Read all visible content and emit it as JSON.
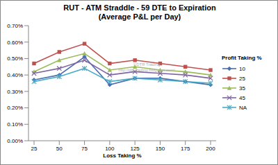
{
  "chart_data": {
    "type": "line",
    "title": "RUT - ATM Straddle - 59 DTE to Expiration",
    "subtitle": "(Average P&L per Day)",
    "x_label": "Loss Taking %",
    "legend_title": "Profit Taking %",
    "legend": "right",
    "grid": false,
    "annotations": [
      "©DTR Trading",
      "http://dtr-trading.blogspot.com/"
    ],
    "categories": [
      "25",
      "50",
      "75",
      "100",
      "125",
      "150",
      "175",
      "200"
    ],
    "ylim": [
      0,
      0.7
    ],
    "yticks": [
      {
        "value": 0,
        "label": "0.00%"
      },
      {
        "value": 0.1,
        "label": "0.10%"
      },
      {
        "value": 0.2,
        "label": "0.20%"
      },
      {
        "value": 0.3,
        "label": "0.30%"
      },
      {
        "value": 0.4,
        "label": "0.40%"
      },
      {
        "value": 0.5,
        "label": "0.50%"
      },
      {
        "value": 0.6,
        "label": "0.60%"
      },
      {
        "value": 0.7,
        "label": "0.70%"
      }
    ],
    "series": [
      {
        "name": "10",
        "color": "#4a6fb0",
        "marker": "diamond",
        "values": [
          0.37,
          0.4,
          0.51,
          0.34,
          0.38,
          0.38,
          0.36,
          0.34
        ]
      },
      {
        "name": "25",
        "color": "#c0504d",
        "marker": "square",
        "values": [
          0.47,
          0.54,
          0.59,
          0.47,
          0.49,
          0.47,
          0.45,
          0.43
        ]
      },
      {
        "name": "35",
        "color": "#9bbb59",
        "marker": "triangle",
        "values": [
          0.42,
          0.49,
          0.53,
          0.43,
          0.45,
          0.43,
          0.42,
          0.4
        ]
      },
      {
        "name": "45",
        "color": "#8064a2",
        "marker": "x",
        "values": [
          0.41,
          0.44,
          0.49,
          0.4,
          0.42,
          0.41,
          0.4,
          0.38
        ]
      },
      {
        "name": "NA",
        "color": "#4bacc6",
        "marker": "star",
        "values": [
          0.36,
          0.39,
          0.44,
          0.36,
          0.38,
          0.37,
          0.36,
          0.35
        ]
      }
    ]
  }
}
